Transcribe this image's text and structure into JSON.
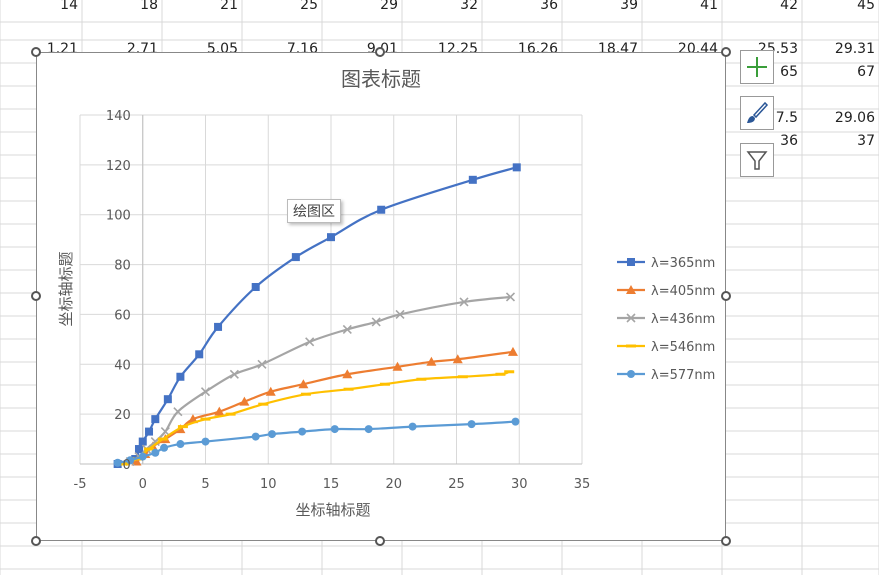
{
  "spreadsheet": {
    "row1": [
      "14",
      "18",
      "21",
      "25",
      "29",
      "32",
      "36",
      "39",
      "41",
      "42",
      "45"
    ],
    "row2": [
      "1.21",
      "2.71",
      "5.05",
      "7.16",
      "9.01",
      "12.25",
      "16.26",
      "18.47",
      "20.44",
      "25.53",
      "29.31"
    ],
    "row3": [
      "65",
      "67"
    ],
    "row4": [
      "7.5",
      "29.06"
    ],
    "row5": [
      "36",
      "37"
    ]
  },
  "tooltip": "绘图区",
  "icons": {
    "add": "plus-icon",
    "style": "brush-icon",
    "filter": "funnel-icon"
  },
  "chart_data": {
    "type": "scatter",
    "title": "图表标题",
    "xlabel": "坐标轴标题",
    "ylabel": "坐标轴标题",
    "xlim": [
      -5,
      35
    ],
    "ylim": [
      0,
      140
    ],
    "xticks": [
      "-5",
      "0",
      "5",
      "10",
      "15",
      "20",
      "25",
      "30",
      "35"
    ],
    "yticks": [
      "0",
      "20",
      "40",
      "60",
      "80",
      "100",
      "120",
      "140"
    ],
    "grid": true,
    "legend_position": "right",
    "series": [
      {
        "name": "λ=365nm",
        "color": "#4472C4",
        "marker": "square",
        "x": [
          -2,
          -0.6,
          -0.3,
          0,
          0.5,
          1,
          2,
          3,
          4.5,
          6,
          9,
          12.2,
          15,
          19,
          26.3,
          29.8
        ],
        "y": [
          0,
          2,
          6,
          9,
          13,
          18,
          26,
          35,
          44,
          55,
          71,
          83,
          91,
          102,
          114,
          119
        ]
      },
      {
        "name": "λ=405nm",
        "color": "#ED7D31",
        "marker": "triangle",
        "x": [
          -0.5,
          0.2,
          0.8,
          1.8,
          3,
          4,
          6.1,
          8.1,
          10.2,
          12.8,
          16.3,
          20.3,
          23,
          25.1,
          29.5
        ],
        "y": [
          1,
          4,
          7,
          10,
          14,
          18,
          21,
          25,
          29,
          32,
          36,
          39,
          41,
          42,
          45
        ]
      },
      {
        "name": "λ=436nm",
        "color": "#A5A5A5",
        "marker": "x",
        "x": [
          -1,
          -0.3,
          0.3,
          1,
          1.8,
          2.8,
          5,
          7.3,
          9.5,
          13.3,
          16.3,
          18.6,
          20.5,
          25.6,
          29.3
        ],
        "y": [
          1,
          3,
          6,
          9,
          13,
          21,
          29,
          36,
          40,
          49,
          54,
          57,
          60,
          65,
          67
        ]
      },
      {
        "name": "λ=546nm",
        "color": "#FFC000",
        "marker": "dash",
        "x": [
          -1.5,
          -0.5,
          0.5,
          1.6,
          3.2,
          5,
          7,
          9.6,
          13,
          16.4,
          19.3,
          22.2,
          25.5,
          28.5,
          29.2
        ],
        "y": [
          0,
          2,
          6,
          10,
          15,
          18,
          20,
          24,
          28,
          30,
          32,
          34,
          35,
          36,
          37
        ]
      },
      {
        "name": "λ=577nm",
        "color": "#5B9BD5",
        "marker": "circle",
        "x": [
          -2,
          -1,
          0,
          1,
          1.7,
          3,
          5,
          9,
          10.3,
          12.7,
          15.3,
          18,
          21.5,
          26.2,
          29.7
        ],
        "y": [
          0.5,
          1.5,
          3,
          4.5,
          6.5,
          8,
          9,
          11,
          12,
          13,
          14,
          14,
          15,
          16,
          17
        ]
      }
    ]
  }
}
